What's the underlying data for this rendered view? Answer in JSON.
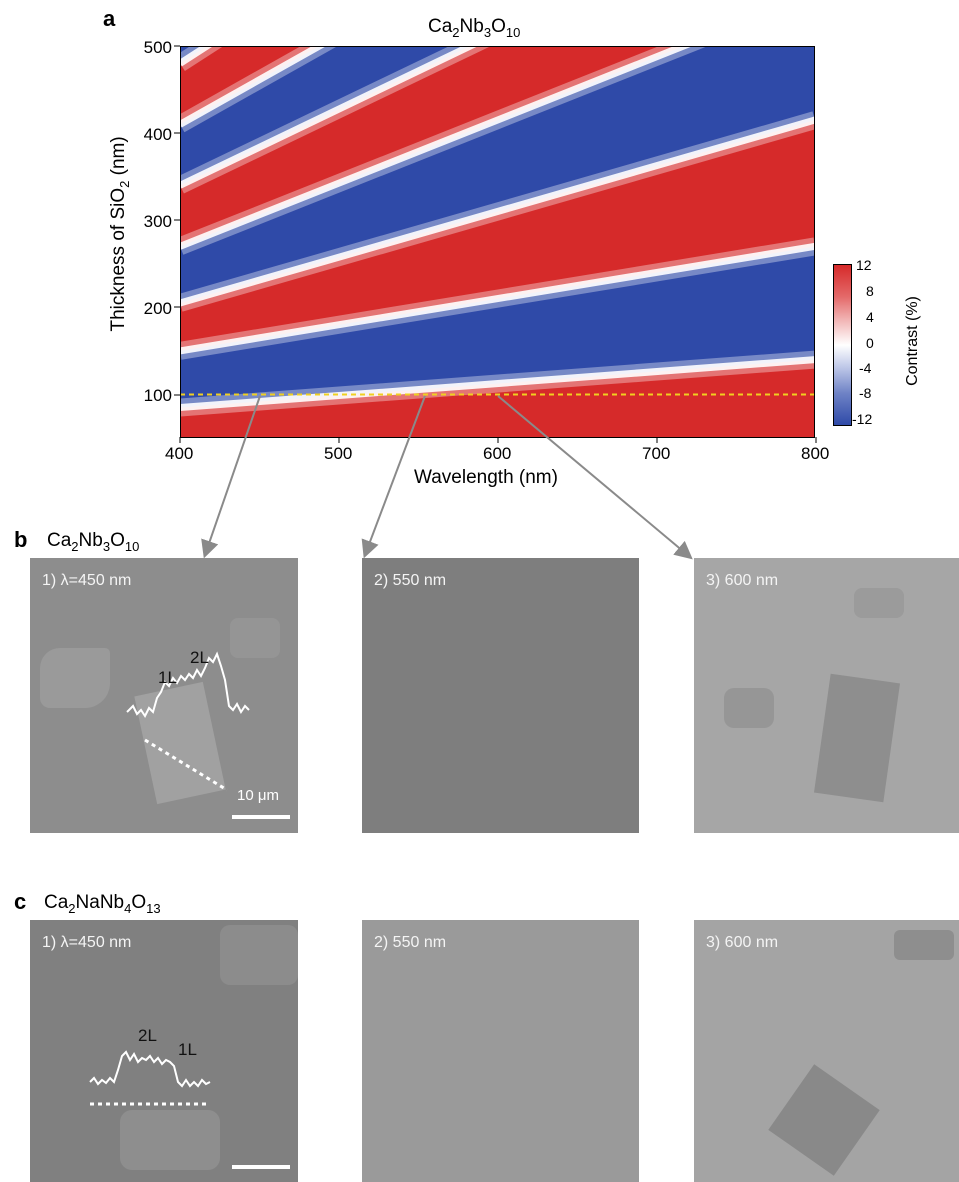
{
  "panel_a": {
    "letter": "a",
    "title": {
      "base": "Ca",
      "s1": "2",
      "m1": "Nb",
      "s2": "3",
      "m2": "O",
      "s3": "10"
    },
    "y_axis": {
      "pre": "Thickness of SiO",
      "sub": "2",
      "post": " (nm)",
      "ticks": [
        "100",
        "200",
        "300",
        "400",
        "500"
      ]
    },
    "x_axis": {
      "label": "Wavelength (nm)",
      "ticks": [
        "400",
        "500",
        "600",
        "700",
        "800"
      ]
    },
    "colorbar": {
      "label": "Contrast (%)",
      "ticks": [
        "12",
        "8",
        "4",
        "0",
        "-4",
        "-8",
        "-12"
      ]
    }
  },
  "chart_data": {
    "type": "heatmap",
    "title": "Ca2Nb3O10",
    "xlabel": "Wavelength (nm)",
    "ylabel": "Thickness of SiO2 (nm)",
    "xlim": [
      400,
      800
    ],
    "ylim": [
      50,
      500
    ],
    "colorbar": {
      "label": "Contrast (%)",
      "range": [
        -12,
        12
      ]
    },
    "zero_contrast_lines": {
      "description_units": "thickness (nm) at wavelength 400 and 800 nm",
      "lines": [
        [
          85,
          140
        ],
        [
          150,
          270
        ],
        [
          205,
          415
        ],
        [
          270,
          500
        ],
        [
          340,
          500
        ],
        [
          410,
          500
        ],
        [
          480,
          500
        ]
      ]
    },
    "marker_line": {
      "thickness_nm": 100,
      "color": "#f0d020"
    },
    "highlighted_wavelengths_nm": [
      450,
      550,
      600
    ]
  },
  "panel_b": {
    "letter": "b",
    "formula": {
      "base": "Ca",
      "s1": "2",
      "m1": "Nb",
      "s2": "3",
      "m2": "O",
      "s3": "10"
    },
    "images": [
      {
        "label": "1) λ=450 nm",
        "profile": {
          "l1": "1L",
          "l2": "2L"
        },
        "scalebar": "10 μm"
      },
      {
        "label": "2) 550 nm"
      },
      {
        "label": "3) 600 nm"
      }
    ]
  },
  "panel_c": {
    "letter": "c",
    "formula": {
      "base": "Ca",
      "s1": "2",
      "m1": "NaNb",
      "s2": "4",
      "m2": "O",
      "s3": "13"
    },
    "images": [
      {
        "label": "1) λ=450 nm",
        "profile": {
          "l1": "2L",
          "l2": "1L"
        }
      },
      {
        "label": "2) 550 nm"
      },
      {
        "label": "3) 600 nm"
      }
    ]
  },
  "colors": {
    "positive": "#d62a2a",
    "zero": "#ffffff",
    "negative": "#2f4aa8",
    "arrow": "#8a8a8a"
  }
}
